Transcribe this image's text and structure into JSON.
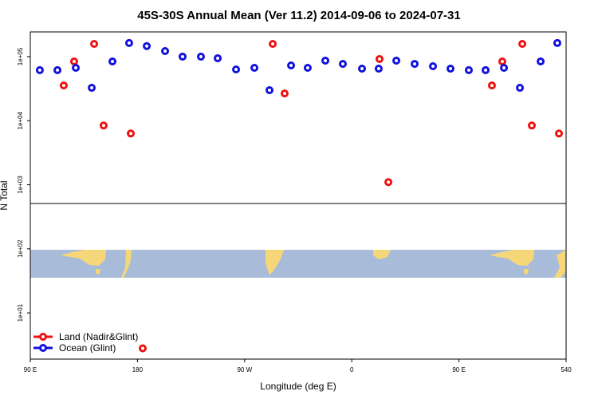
{
  "chart_data": {
    "type": "scatter",
    "title": "45S-30S Annual Mean (Ver 11.2)   2014-09-06 to 2024-07-31",
    "x_label": "Longitude (deg E)",
    "y_label": "N Total",
    "log_y": true,
    "legend": "bottom-left",
    "xlim": [
      90,
      540
    ],
    "ylim": [
      1.9,
      243000
    ],
    "xticks": [
      {
        "value": 90,
        "label": "90 E"
      },
      180,
      {
        "value": 270,
        "label": "90 W"
      },
      {
        "value": 360,
        "label": "0"
      },
      {
        "value": 450,
        "label": "90 E"
      },
      540
    ],
    "yticks": [
      {
        "value": 10,
        "label": "1e+01"
      },
      {
        "value": 100,
        "label": "1e+02"
      },
      {
        "value": 1000,
        "label": "1e+03"
      },
      {
        "value": 10000,
        "label": "1e+04"
      },
      {
        "value": 100000,
        "label": "1e+05"
      }
    ],
    "series": [
      {
        "name": "Land (Nadir&Glint)",
        "color": "#ee1111",
        "x": [
          118.1,
          126.8,
          143.6,
          151.6,
          174.4,
          184.4,
          293.6,
          303.6,
          383.3,
          390.7,
          477.7,
          486.4,
          503.2,
          511.2,
          534.0
        ],
        "values": [
          35500,
          84100,
          158000,
          8410,
          6310,
          2.8,
          158000,
          26600,
          91800,
          1100,
          35500,
          84100,
          158000,
          8410,
          6310
        ]
      },
      {
        "name": "Ocean (Glint)",
        "color": "#1111dd",
        "x": [
          98.0,
          112.8,
          128.2,
          141.6,
          159.0,
          173.0,
          187.8,
          203.2,
          217.9,
          233.3,
          247.4,
          262.8,
          278.2,
          290.9,
          309.0,
          323.0,
          337.8,
          352.5,
          368.6,
          382.6,
          397.4,
          412.8,
          428.2,
          442.9,
          458.3,
          472.4,
          487.8,
          501.2,
          518.6,
          532.6
        ],
        "values": [
          61500,
          61500,
          66800,
          32600,
          84100,
          163000,
          146000,
          122000,
          100000,
          100000,
          94400,
          63100,
          66800,
          29900,
          72800,
          66800,
          86600,
          77000,
          64900,
          64900,
          86600,
          77000,
          70800,
          64900,
          61500,
          61500,
          66800,
          32600,
          84100,
          163000
        ]
      }
    ]
  }
}
